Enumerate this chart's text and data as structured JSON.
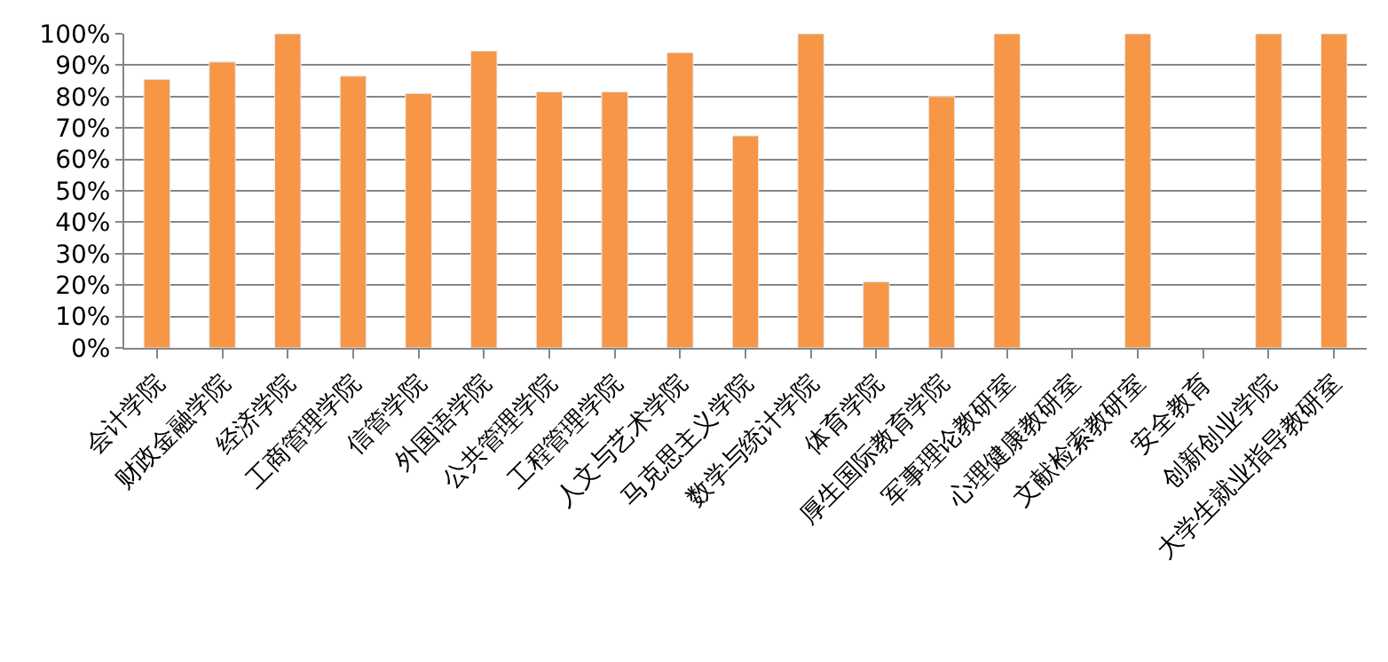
{
  "chart_data": {
    "type": "bar",
    "categories": [
      "会计学院",
      "财政金融学院",
      "经济学院",
      "工商管理学院",
      "信管学院",
      "外国语学院",
      "公共管理学院",
      "工程管理学院",
      "人文与艺术学院",
      "马克思主义学院",
      "数学与统计学院",
      "体育学院",
      "厚生国际教育学院",
      "军事理论教研室",
      "心理健康教研室",
      "文献检索教研室",
      "安全教育",
      "创新创业学院",
      "大学生就业指导教研室"
    ],
    "values": [
      85.5,
      91,
      100,
      86.5,
      81,
      94.5,
      81.5,
      81.5,
      94,
      67.5,
      100,
      21,
      80,
      100,
      null,
      100,
      null,
      100,
      100
    ],
    "color": "#f79646",
    "ylim": [
      0,
      100
    ],
    "yticks": [
      {
        "value": 0,
        "label": "0%"
      },
      {
        "value": 10,
        "label": "10%"
      },
      {
        "value": 20,
        "label": "20%"
      },
      {
        "value": 30,
        "label": "30%"
      },
      {
        "value": 40,
        "label": "40%"
      },
      {
        "value": 50,
        "label": "50%"
      },
      {
        "value": 60,
        "label": "60%"
      },
      {
        "value": 70,
        "label": "70%"
      },
      {
        "value": 80,
        "label": "80%"
      },
      {
        "value": 90,
        "label": "90%"
      },
      {
        "value": 100,
        "label": "100%"
      }
    ],
    "grid": "y"
  }
}
